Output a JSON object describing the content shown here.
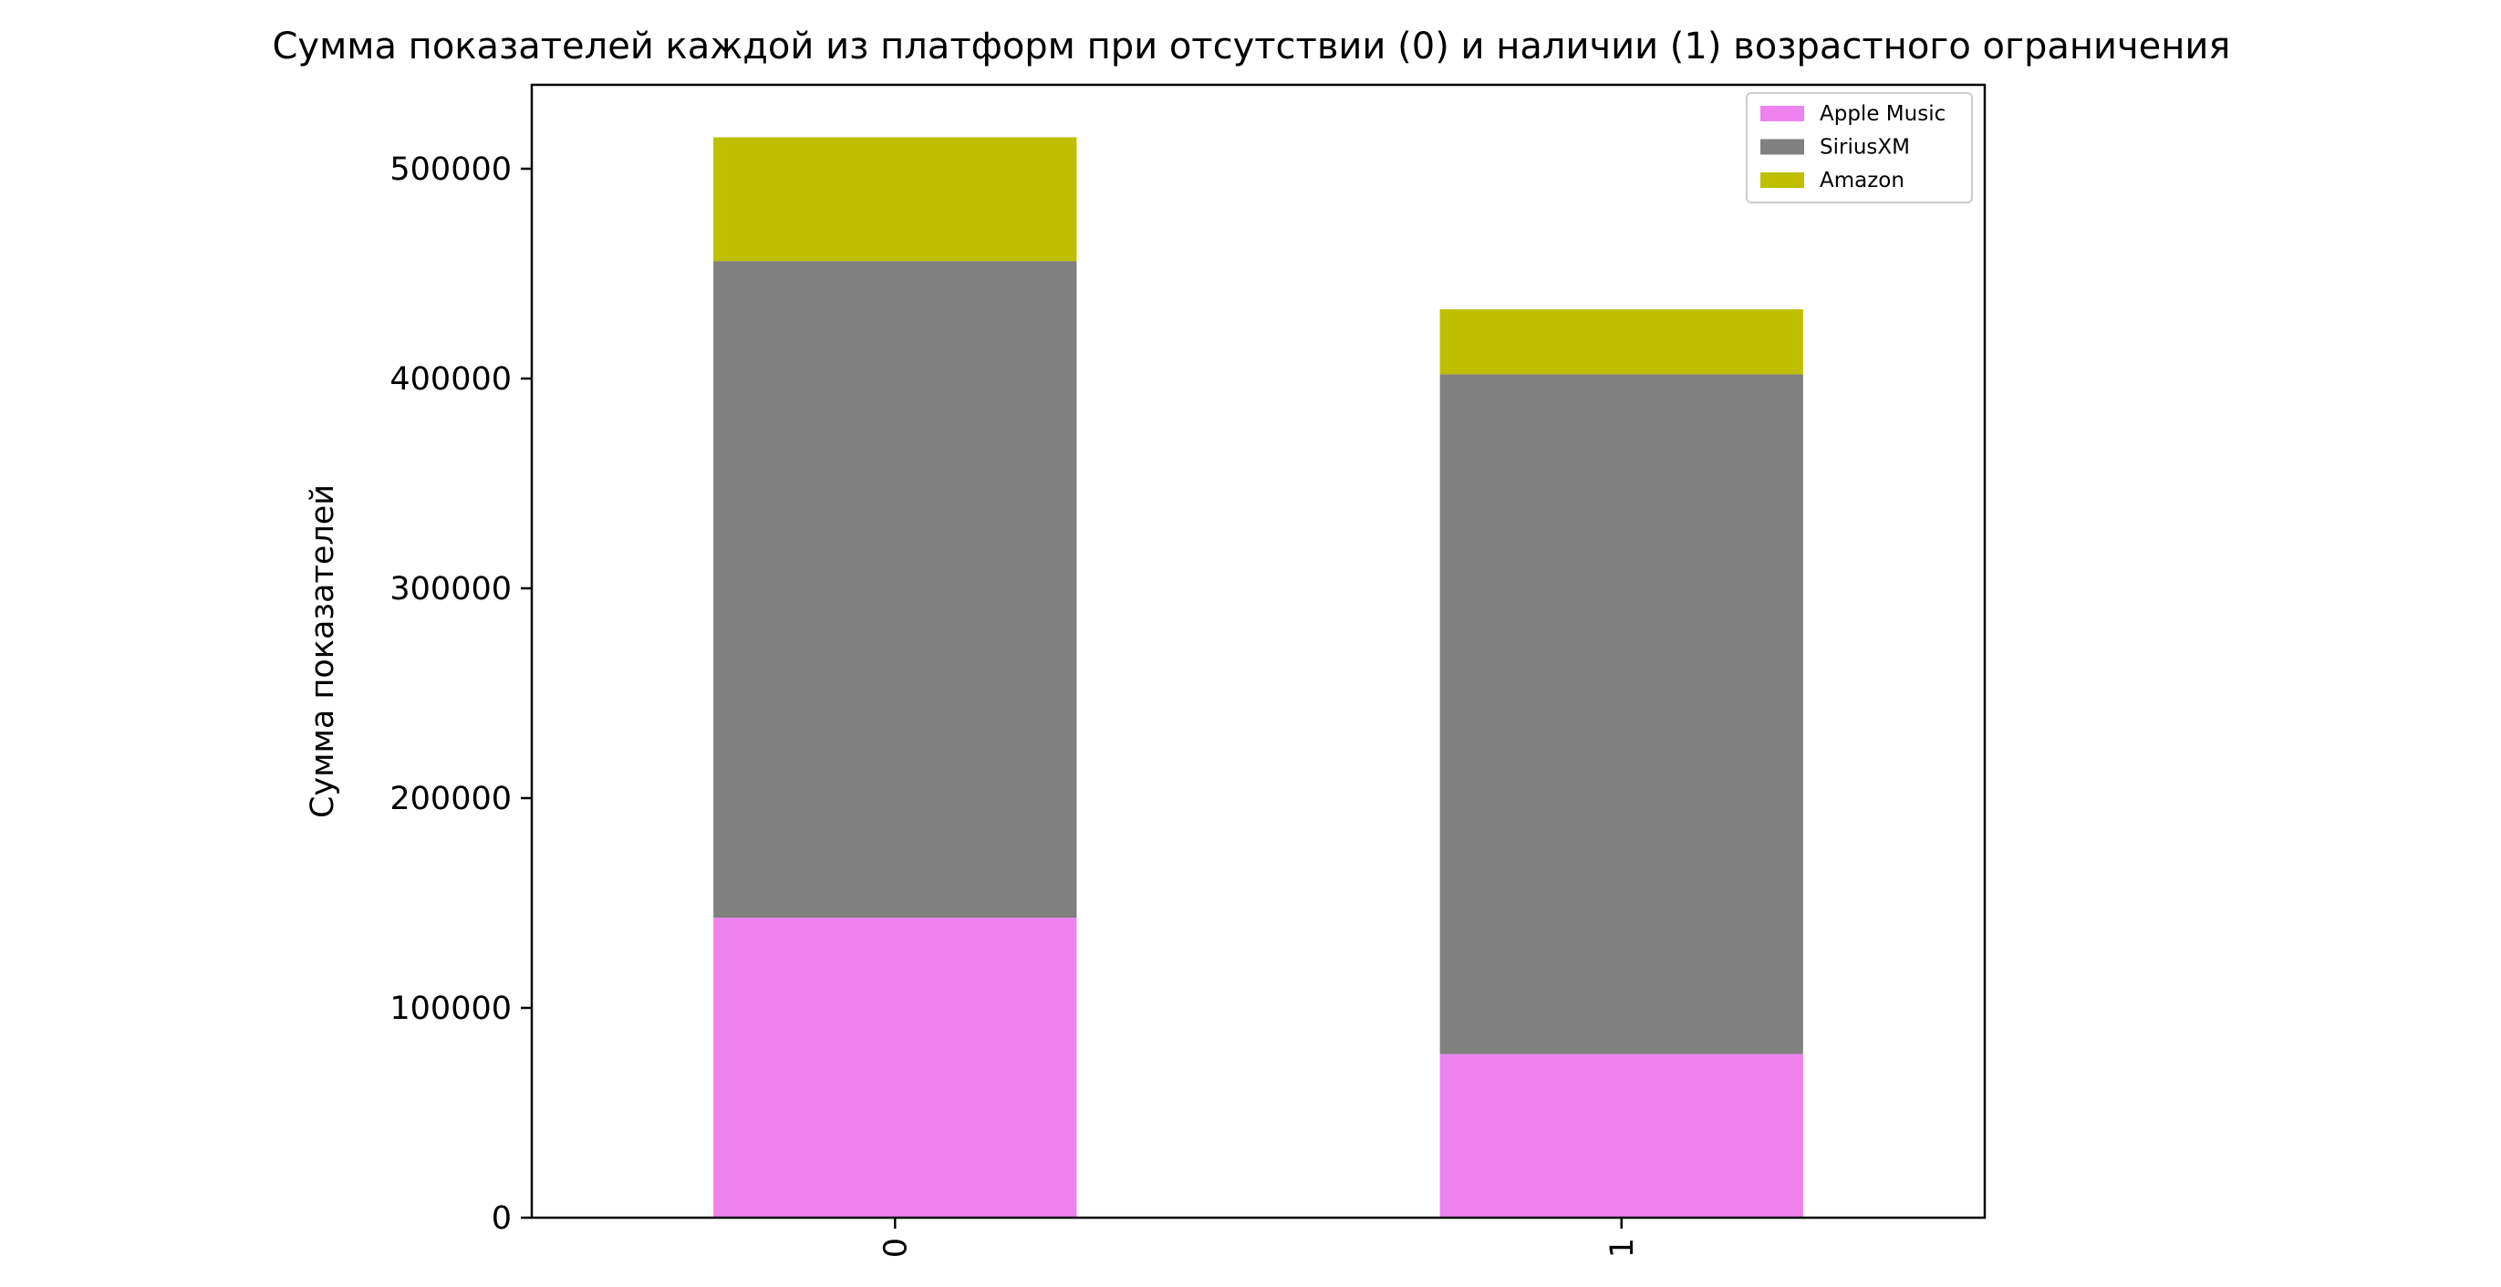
{
  "chart_data": {
    "type": "bar",
    "stacked": true,
    "title": "Сумма показателей каждой из платформ при отсутствии (0) и наличии (1) возрастного ограничения",
    "xlabel": "",
    "ylabel": "Сумма показателей",
    "categories": [
      "0",
      "1"
    ],
    "series": [
      {
        "name": "Apple Music",
        "color": "#ee82ee",
        "values": [
          143000,
          78000
        ]
      },
      {
        "name": "SiriusXM",
        "color": "#808080",
        "values": [
          313000,
          324000
        ]
      },
      {
        "name": "Amazon",
        "color": "#bfbf00",
        "values": [
          59000,
          31000
        ]
      }
    ],
    "ylim": [
      0,
      540000
    ],
    "yticks": [
      0,
      100000,
      200000,
      300000,
      400000,
      500000
    ],
    "ytick_labels": [
      "0",
      "100000",
      "200000",
      "300000",
      "400000",
      "500000"
    ],
    "grid": false,
    "legend_position": "top-right"
  }
}
